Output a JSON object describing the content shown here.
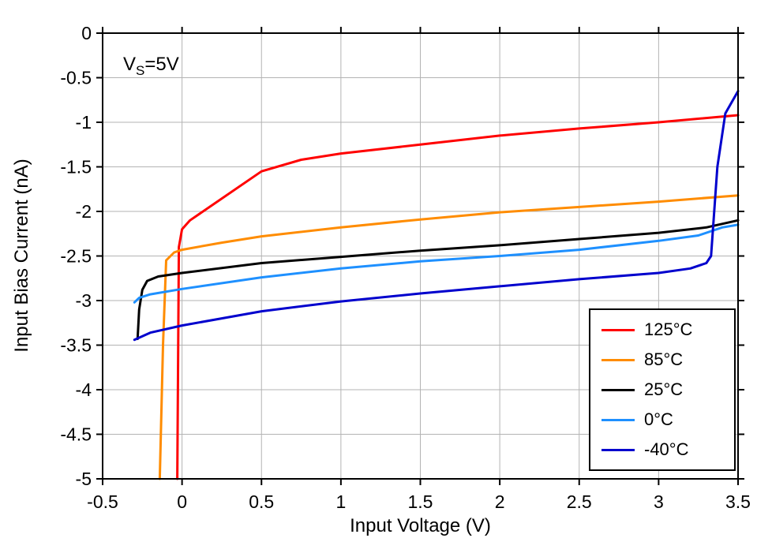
{
  "chart_data": {
    "type": "line",
    "title": "",
    "xlabel": "Input Voltage (V)",
    "ylabel": "Input Bias Current (nA)",
    "xlim": [
      -0.5,
      3.5
    ],
    "ylim": [
      -5,
      0
    ],
    "grid": true,
    "legend_position": "bottom-right",
    "annotation": {
      "prefix": "V",
      "sub": "S",
      "suffix": "=5V"
    },
    "x_ticks": [
      -0.5,
      0,
      0.5,
      1,
      1.5,
      2,
      2.5,
      3,
      3.5
    ],
    "x_tick_labels": [
      "-0.5",
      "0",
      "0.5",
      "1",
      "1.5",
      "2",
      "2.5",
      "3",
      "3.5"
    ],
    "y_ticks": [
      0,
      -0.5,
      -1,
      -1.5,
      -2,
      -2.5,
      -3,
      -3.5,
      -4,
      -4.5,
      -5
    ],
    "y_tick_labels": [
      "0",
      "-0.5",
      "-1",
      "-1.5",
      "-2",
      "-2.5",
      "-3",
      "-3.5",
      "-4",
      "-4.5",
      "-5"
    ],
    "colors": {
      "grid": "#b3b3b3",
      "frame": "#000000",
      "series_125C": "#ff0000",
      "series_85C": "#ff8c00",
      "series_25C": "#000000",
      "series_0C": "#1e90ff",
      "series_m40C": "#0000cd"
    },
    "series": [
      {
        "name": "125°C",
        "color": "#ff0000",
        "points": [
          [
            -0.03,
            -5
          ],
          [
            -0.02,
            -2.4
          ],
          [
            0,
            -2.2
          ],
          [
            0.05,
            -2.1
          ],
          [
            0.5,
            -1.55
          ],
          [
            0.75,
            -1.42
          ],
          [
            1,
            -1.35
          ],
          [
            1.5,
            -1.25
          ],
          [
            2,
            -1.15
          ],
          [
            2.5,
            -1.07
          ],
          [
            3,
            -1.0
          ],
          [
            3.5,
            -0.92
          ]
        ]
      },
      {
        "name": "85°C",
        "color": "#ff8c00",
        "points": [
          [
            -0.14,
            -5
          ],
          [
            -0.12,
            -3.5
          ],
          [
            -0.1,
            -2.55
          ],
          [
            -0.05,
            -2.46
          ],
          [
            0,
            -2.43
          ],
          [
            0.25,
            -2.35
          ],
          [
            0.5,
            -2.28
          ],
          [
            1,
            -2.18
          ],
          [
            1.5,
            -2.09
          ],
          [
            2,
            -2.01
          ],
          [
            2.5,
            -1.95
          ],
          [
            3,
            -1.89
          ],
          [
            3.5,
            -1.82
          ]
        ]
      },
      {
        "name": "25°C",
        "color": "#000000",
        "points": [
          [
            -0.28,
            -3.43
          ],
          [
            -0.27,
            -3.1
          ],
          [
            -0.25,
            -2.88
          ],
          [
            -0.22,
            -2.78
          ],
          [
            -0.15,
            -2.73
          ],
          [
            0,
            -2.69
          ],
          [
            0.5,
            -2.58
          ],
          [
            1,
            -2.51
          ],
          [
            1.5,
            -2.44
          ],
          [
            2,
            -2.38
          ],
          [
            2.5,
            -2.31
          ],
          [
            3,
            -2.24
          ],
          [
            3.3,
            -2.18
          ],
          [
            3.5,
            -2.1
          ]
        ]
      },
      {
        "name": "0°C",
        "color": "#1e90ff",
        "points": [
          [
            -0.3,
            -3.02
          ],
          [
            -0.27,
            -2.97
          ],
          [
            -0.2,
            -2.93
          ],
          [
            0,
            -2.87
          ],
          [
            0.5,
            -2.74
          ],
          [
            1,
            -2.64
          ],
          [
            1.5,
            -2.56
          ],
          [
            2,
            -2.5
          ],
          [
            2.5,
            -2.43
          ],
          [
            3,
            -2.33
          ],
          [
            3.25,
            -2.27
          ],
          [
            3.4,
            -2.18
          ],
          [
            3.5,
            -2.15
          ]
        ]
      },
      {
        "name": "-40°C",
        "color": "#0000cd",
        "points": [
          [
            -0.3,
            -3.44
          ],
          [
            -0.2,
            -3.36
          ],
          [
            0,
            -3.28
          ],
          [
            0.5,
            -3.12
          ],
          [
            1,
            -3.01
          ],
          [
            1.5,
            -2.92
          ],
          [
            2,
            -2.84
          ],
          [
            2.5,
            -2.76
          ],
          [
            3,
            -2.69
          ],
          [
            3.2,
            -2.64
          ],
          [
            3.3,
            -2.58
          ],
          [
            3.33,
            -2.5
          ],
          [
            3.37,
            -1.5
          ],
          [
            3.42,
            -0.9
          ],
          [
            3.5,
            -0.65
          ]
        ]
      }
    ]
  }
}
